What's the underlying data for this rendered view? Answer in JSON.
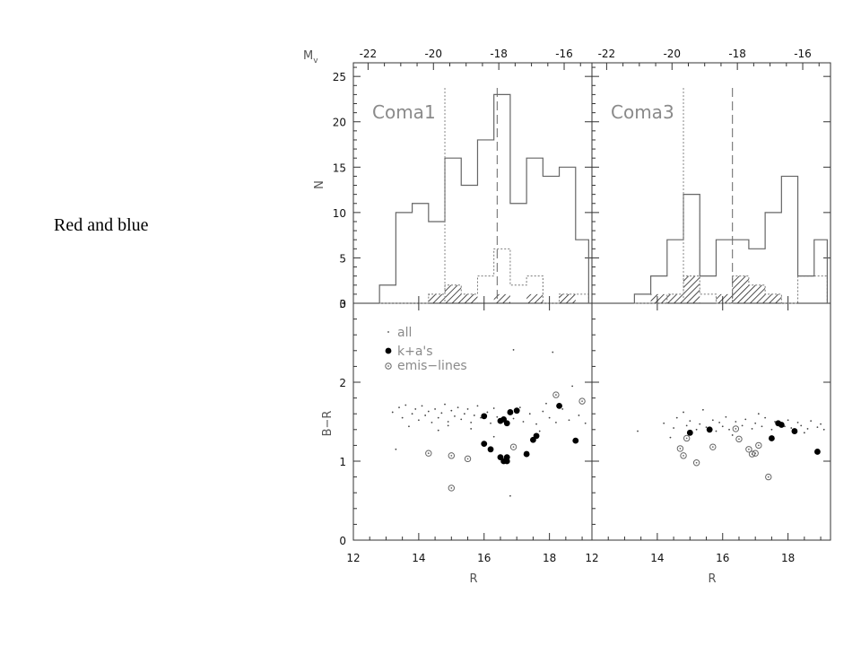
{
  "caption": "Red and blue",
  "chart_data": {
    "type": "multi-panel",
    "top_axis": {
      "label": "M",
      "label_sub": "v",
      "tick_labels": [
        "-22",
        "-20",
        "-18",
        "-16"
      ],
      "tick_R": [
        12.45,
        14.45,
        16.45,
        18.45
      ]
    },
    "x_axis": {
      "label": "R",
      "left_panel_ticks": [
        "12",
        "14",
        "16",
        "18"
      ],
      "right_panel_ticks": [
        "12",
        "14",
        "16",
        "18"
      ],
      "left_range": [
        12,
        19.3
      ],
      "right_range": [
        12,
        19.3
      ]
    },
    "top_y": {
      "label": "N",
      "range": [
        0,
        26.5
      ],
      "ticks": [
        "0",
        "5",
        "10",
        "15",
        "20",
        "25"
      ]
    },
    "bottom_y": {
      "label": "B−R",
      "range": [
        0,
        3.0
      ],
      "ticks": [
        "0",
        "1",
        "2",
        "3"
      ]
    },
    "legend": {
      "entries": [
        {
          "marker": "dot",
          "label": "all"
        },
        {
          "marker": "filled-circle",
          "label": "k+a's"
        },
        {
          "marker": "ring",
          "label": "emis−lines"
        }
      ]
    },
    "panels": [
      {
        "name": "Coma1",
        "bin_edges": [
          12.8,
          13.3,
          13.8,
          14.3,
          14.8,
          15.3,
          15.8,
          16.3,
          16.8,
          17.3,
          17.8,
          18.3,
          18.8,
          19.2
        ],
        "hist_all": [
          2,
          10,
          11,
          9,
          16,
          13,
          18,
          23,
          11,
          16,
          14,
          15,
          7
        ],
        "hist_emission_dotted": [
          0,
          0,
          0,
          1,
          2,
          1,
          3,
          6,
          2,
          3,
          0,
          1,
          1
        ],
        "hist_ka_hatched": [
          0,
          0,
          0,
          1,
          2,
          1,
          0,
          1,
          0,
          1,
          0,
          1,
          0
        ],
        "dotted_line_R": 14.8,
        "dashed_line_R": 16.4,
        "ka_points": [
          [
            16.0,
            1.57
          ],
          [
            16.5,
            1.51
          ],
          [
            16.6,
            1.53
          ],
          [
            16.7,
            1.48
          ],
          [
            16.8,
            1.62
          ],
          [
            17.0,
            1.64
          ],
          [
            16.0,
            1.22
          ],
          [
            16.2,
            1.15
          ],
          [
            16.6,
            1.0
          ],
          [
            16.7,
            1.05
          ],
          [
            16.5,
            1.05
          ],
          [
            16.7,
            1.0
          ],
          [
            17.3,
            1.09
          ],
          [
            17.5,
            1.27
          ],
          [
            17.6,
            1.32
          ],
          [
            18.3,
            1.7
          ],
          [
            18.8,
            1.26
          ]
        ],
        "emission_points": [
          [
            14.3,
            1.1
          ],
          [
            15.0,
            1.07
          ],
          [
            15.5,
            1.03
          ],
          [
            15.0,
            0.66
          ],
          [
            16.9,
            1.18
          ],
          [
            18.2,
            1.84
          ],
          [
            19.0,
            1.76
          ]
        ],
        "all_points": [
          [
            13.2,
            1.62
          ],
          [
            13.4,
            1.68
          ],
          [
            13.5,
            1.55
          ],
          [
            13.6,
            1.71
          ],
          [
            13.8,
            1.6
          ],
          [
            13.9,
            1.66
          ],
          [
            14.0,
            1.52
          ],
          [
            14.1,
            1.7
          ],
          [
            14.2,
            1.58
          ],
          [
            14.3,
            1.63
          ],
          [
            14.4,
            1.49
          ],
          [
            14.5,
            1.66
          ],
          [
            14.6,
            1.55
          ],
          [
            14.7,
            1.61
          ],
          [
            14.8,
            1.72
          ],
          [
            14.9,
            1.5
          ],
          [
            15.0,
            1.64
          ],
          [
            15.1,
            1.57
          ],
          [
            15.2,
            1.68
          ],
          [
            15.3,
            1.53
          ],
          [
            15.4,
            1.6
          ],
          [
            15.5,
            1.66
          ],
          [
            15.6,
            1.49
          ],
          [
            15.7,
            1.58
          ],
          [
            15.8,
            1.7
          ],
          [
            15.9,
            1.55
          ],
          [
            16.1,
            1.62
          ],
          [
            16.2,
            1.48
          ],
          [
            16.3,
            1.67
          ],
          [
            16.4,
            1.56
          ],
          [
            16.9,
            1.54
          ],
          [
            17.1,
            1.68
          ],
          [
            17.2,
            1.5
          ],
          [
            17.4,
            1.6
          ],
          [
            17.6,
            1.47
          ],
          [
            17.8,
            1.63
          ],
          [
            18.0,
            1.55
          ],
          [
            18.2,
            1.49
          ],
          [
            18.4,
            1.66
          ],
          [
            18.6,
            1.52
          ],
          [
            18.9,
            1.58
          ],
          [
            19.1,
            1.48
          ],
          [
            13.3,
            1.15
          ],
          [
            14.9,
            1.45
          ],
          [
            16.3,
            1.31
          ],
          [
            16.9,
            2.41
          ],
          [
            18.1,
            2.38
          ],
          [
            16.8,
            0.56
          ],
          [
            17.7,
            1.38
          ],
          [
            15.6,
            1.41
          ],
          [
            18.7,
            1.95
          ],
          [
            14.6,
            1.39
          ],
          [
            17.9,
            1.73
          ],
          [
            13.7,
            1.44
          ]
        ]
      },
      {
        "name": "Coma3",
        "bin_edges": [
          13.3,
          13.8,
          14.3,
          14.8,
          15.3,
          15.8,
          16.3,
          16.8,
          17.3,
          17.8,
          18.3,
          18.8,
          19.2
        ],
        "hist_all": [
          1,
          3,
          7,
          12,
          3,
          7,
          7,
          6,
          10,
          14,
          3,
          7
        ],
        "hist_emission_dotted": [
          0,
          0,
          1,
          3,
          1,
          0,
          3,
          2,
          1,
          0,
          3,
          3
        ],
        "hist_ka_hatched": [
          0,
          1,
          1,
          3,
          0,
          1,
          3,
          2,
          1,
          0,
          0,
          0
        ],
        "dotted_line_R": 14.8,
        "dashed_line_R": 16.3,
        "ka_points": [
          [
            15.0,
            1.36
          ],
          [
            15.6,
            1.4
          ],
          [
            17.5,
            1.29
          ],
          [
            17.7,
            1.48
          ],
          [
            17.8,
            1.46
          ],
          [
            18.2,
            1.38
          ],
          [
            18.9,
            1.12
          ]
        ],
        "emission_points": [
          [
            14.7,
            1.16
          ],
          [
            14.9,
            1.29
          ],
          [
            14.8,
            1.07
          ],
          [
            15.2,
            0.98
          ],
          [
            15.7,
            1.18
          ],
          [
            16.4,
            1.41
          ],
          [
            16.5,
            1.28
          ],
          [
            16.8,
            1.15
          ],
          [
            17.0,
            1.1
          ],
          [
            17.1,
            1.2
          ],
          [
            17.4,
            0.8
          ],
          [
            16.9,
            1.09
          ]
        ],
        "all_points": [
          [
            13.4,
            1.38
          ],
          [
            14.2,
            1.48
          ],
          [
            14.5,
            1.42
          ],
          [
            14.6,
            1.55
          ],
          [
            14.9,
            1.45
          ],
          [
            15.0,
            1.51
          ],
          [
            15.2,
            1.4
          ],
          [
            15.3,
            1.47
          ],
          [
            15.5,
            1.43
          ],
          [
            15.7,
            1.52
          ],
          [
            15.8,
            1.38
          ],
          [
            15.9,
            1.49
          ],
          [
            16.0,
            1.44
          ],
          [
            16.1,
            1.56
          ],
          [
            16.2,
            1.4
          ],
          [
            16.4,
            1.5
          ],
          [
            16.6,
            1.45
          ],
          [
            16.7,
            1.53
          ],
          [
            16.9,
            1.41
          ],
          [
            17.0,
            1.48
          ],
          [
            17.2,
            1.44
          ],
          [
            17.3,
            1.55
          ],
          [
            17.5,
            1.4
          ],
          [
            17.6,
            1.5
          ],
          [
            17.9,
            1.44
          ],
          [
            18.0,
            1.52
          ],
          [
            18.1,
            1.42
          ],
          [
            18.3,
            1.49
          ],
          [
            18.4,
            1.45
          ],
          [
            18.6,
            1.41
          ],
          [
            18.7,
            1.51
          ],
          [
            18.9,
            1.43
          ],
          [
            19.0,
            1.47
          ],
          [
            19.1,
            1.4
          ],
          [
            14.4,
            1.3
          ],
          [
            15.4,
            1.65
          ],
          [
            16.3,
            1.33
          ],
          [
            17.1,
            1.6
          ],
          [
            18.5,
            1.36
          ],
          [
            14.8,
            1.62
          ]
        ]
      }
    ]
  }
}
